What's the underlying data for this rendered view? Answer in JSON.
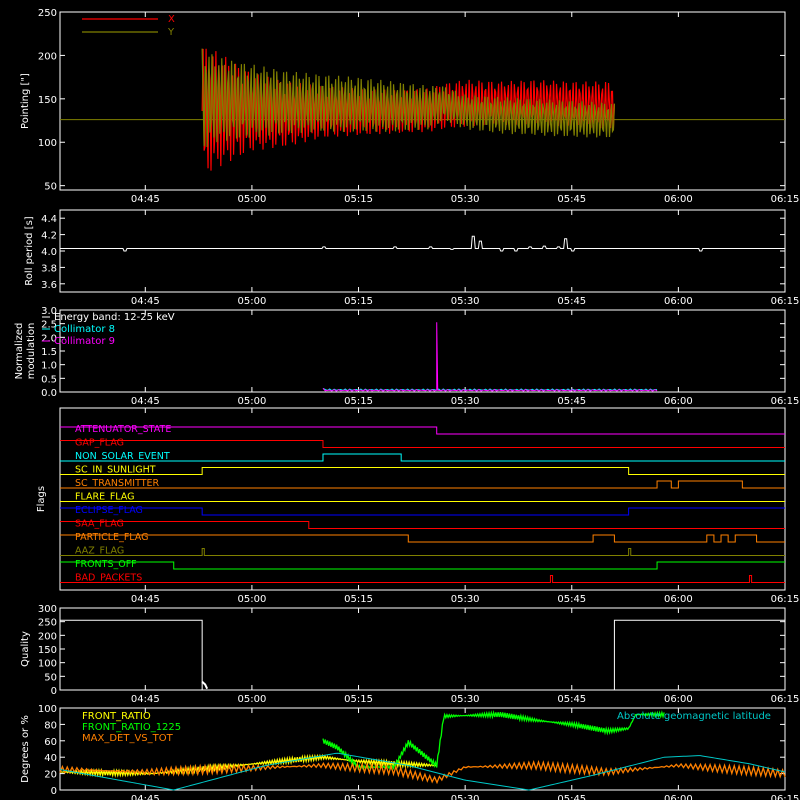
{
  "chart_data": [
    {
      "type": "line",
      "ylabel": "Pointing [\"]",
      "ylim": [
        45,
        250
      ],
      "yticks": [
        50,
        100,
        150,
        200,
        250
      ],
      "xlim": [
        "04:33",
        "06:15"
      ],
      "xticks": [
        "04:45",
        "05:00",
        "05:15",
        "05:30",
        "05:45",
        "06:00",
        "06:15"
      ],
      "legend_position": "top-left",
      "series": [
        {
          "name": "X",
          "color": "#ff0000",
          "segments": [
            {
              "t": [
                "04:53",
                "04:55",
                "05:00",
                "05:05",
                "05:10",
                "05:15",
                "05:20",
                "05:25",
                "05:27",
                "05:30",
                "05:35",
                "05:40",
                "05:45",
                "05:51"
              ],
              "upper": [
                212,
                205,
                180,
                170,
                165,
                162,
                160,
                162,
                168,
                172,
                170,
                172,
                170,
                170
              ],
              "lower": [
                60,
                70,
                90,
                95,
                105,
                108,
                110,
                112,
                115,
                118,
                120,
                120,
                118,
                115
              ]
            }
          ]
        },
        {
          "name": "Y",
          "color": "#808000",
          "baseline": 126,
          "segments": [
            {
              "t": [
                "04:53",
                "04:55",
                "05:00",
                "05:05",
                "05:10",
                "05:15",
                "05:20",
                "05:25",
                "05:27",
                "05:30",
                "05:35",
                "05:40",
                "05:45",
                "05:51"
              ],
              "upper": [
                210,
                198,
                190,
                182,
                178,
                175,
                170,
                165,
                165,
                155,
                152,
                150,
                148,
                145
              ],
              "lower": [
                90,
                100,
                105,
                110,
                112,
                112,
                112,
                115,
                125,
                115,
                110,
                108,
                106,
                105
              ]
            }
          ]
        }
      ]
    },
    {
      "type": "line",
      "ylabel": "Roll period [s]",
      "ylim": [
        3.5,
        4.5
      ],
      "yticks": [
        "3.6",
        "3.8",
        "4.0",
        "4.2",
        "4.4"
      ],
      "series": [
        {
          "color": "#ffffff",
          "baseline": 4.03,
          "spikes": [
            [
              "04:42",
              4.0
            ],
            [
              "05:10",
              4.05
            ],
            [
              "05:20",
              4.05
            ],
            [
              "05:25",
              4.05
            ],
            [
              "05:28",
              4.02
            ],
            [
              "05:31",
              4.18
            ],
            [
              "05:32",
              4.12
            ],
            [
              "05:35",
              4.0
            ],
            [
              "05:37",
              4.0
            ],
            [
              "05:39",
              4.05
            ],
            [
              "05:41",
              4.06
            ],
            [
              "05:43",
              4.05
            ],
            [
              "05:44",
              4.15
            ],
            [
              "05:45",
              4.0
            ],
            [
              "06:03",
              4.0
            ]
          ]
        }
      ]
    },
    {
      "type": "line",
      "ylabel": "Normalized modulation",
      "ylim": [
        0,
        3.0
      ],
      "yticks": [
        "0.0",
        "0.5",
        "1.0",
        "1.5",
        "2.0",
        "2.5",
        "3.0"
      ],
      "legend": [
        "Energy band: 12-25 keV",
        "Collimator 8",
        "Collimator 9"
      ],
      "legend_colors": [
        "#ffffff",
        "#00ffff",
        "#ff00ff"
      ],
      "series": [
        {
          "name": "Collimator 8",
          "color": "#00ffff",
          "t_start": "05:10",
          "t_end": "05:57",
          "level": 0.08
        },
        {
          "name": "Collimator 9",
          "color": "#ff00ff",
          "t_start": "05:10",
          "t_end": "05:57",
          "level": 0.06,
          "spike": [
            "05:26",
            2.55
          ]
        }
      ]
    },
    {
      "type": "step",
      "ylabel": "Flags",
      "flags": [
        {
          "label": "ATTENUATOR_STATE",
          "color": "#ff00ff",
          "steps": [
            [
              "04:33",
              1
            ],
            [
              "05:26",
              0
            ]
          ]
        },
        {
          "label": "GAP_FLAG",
          "color": "#ff0000",
          "steps": [
            [
              "04:33",
              1
            ],
            [
              "05:10",
              0
            ]
          ]
        },
        {
          "label": "NON_SOLAR_EVENT",
          "color": "#00ffff",
          "steps": [
            [
              "04:33",
              0
            ],
            [
              "05:10",
              1
            ],
            [
              "05:21",
              0
            ]
          ]
        },
        {
          "label": "SC_IN_SUNLIGHT",
          "color": "#ffff00",
          "steps": [
            [
              "04:33",
              0
            ],
            [
              "04:53",
              1
            ],
            [
              "05:53",
              0
            ]
          ]
        },
        {
          "label": "SC_TRANSMITTER",
          "color": "#ff8000",
          "steps": [
            [
              "04:33",
              0
            ],
            [
              "04:45",
              0
            ],
            [
              "05:57",
              1
            ],
            [
              "05:59",
              0
            ],
            [
              "06:00",
              1
            ],
            [
              "06:09",
              0
            ]
          ]
        },
        {
          "label": "FLARE_FLAG",
          "color": "#ffff00",
          "steps": [
            [
              "04:33",
              0
            ]
          ]
        },
        {
          "label": "ECLIPSE_FLAG",
          "color": "#0000ff",
          "steps": [
            [
              "04:33",
              1
            ],
            [
              "04:53",
              0
            ],
            [
              "05:53",
              1
            ]
          ]
        },
        {
          "label": "SAA_FLAG",
          "color": "#ff0000",
          "steps": [
            [
              "04:33",
              1
            ],
            [
              "05:08",
              0
            ]
          ]
        },
        {
          "label": "PARTICLE_FLAG",
          "color": "#ff8000",
          "steps": [
            [
              "04:33",
              1
            ],
            [
              "05:22",
              0
            ],
            [
              "05:48",
              1
            ],
            [
              "05:51",
              0
            ],
            [
              "06:04",
              1
            ],
            [
              "06:05",
              0
            ],
            [
              "06:06",
              1
            ],
            [
              "06:07",
              0
            ],
            [
              "06:08",
              1
            ],
            [
              "06:11",
              0
            ]
          ]
        },
        {
          "label": "AAZ_FLAG",
          "color": "#808000",
          "steps": [
            [
              "04:33",
              0
            ],
            [
              "04:53",
              1
            ],
            [
              "04:53.3",
              0
            ],
            [
              "05:53",
              1
            ],
            [
              "05:53.3",
              0
            ]
          ]
        },
        {
          "label": "FRONTS_OFF",
          "color": "#00ff00",
          "steps": [
            [
              "04:33",
              1
            ],
            [
              "04:49",
              0
            ],
            [
              "05:57",
              1
            ]
          ]
        },
        {
          "label": "BAD_PACKETS",
          "color": "#ff0000",
          "steps": [
            [
              "04:33",
              0
            ],
            [
              "05:42",
              1
            ],
            [
              "05:42.3",
              0
            ],
            [
              "06:10",
              1
            ],
            [
              "06:10.3",
              0
            ]
          ]
        }
      ]
    },
    {
      "type": "line",
      "ylabel": "Quality",
      "ylim": [
        0,
        300
      ],
      "yticks": [
        0,
        50,
        100,
        150,
        200,
        250,
        300
      ],
      "series": [
        {
          "color": "#ffffff",
          "steps": [
            [
              "04:33",
              255
            ],
            [
              "04:53",
              0
            ],
            [
              "05:51",
              255
            ]
          ]
        }
      ]
    },
    {
      "type": "line",
      "ylabel": "Degrees or %",
      "ylim": [
        0,
        100
      ],
      "yticks": [
        0,
        20,
        40,
        60,
        80,
        100
      ],
      "annotation": "Absolute geomagnetic latitude",
      "legend": [
        "FRONT_RATIO",
        "FRONT_RATIO_1225",
        "MAX_DET_VS_TOT"
      ],
      "legend_colors": [
        "#ffff00",
        "#00ff00",
        "#ff8000"
      ],
      "series": [
        {
          "name": "FRONT_RATIO",
          "color": "#ffff00",
          "points": [
            [
              "04:33",
              22
            ],
            [
              "04:46",
              20
            ],
            [
              "05:10",
              40
            ],
            [
              "05:15",
              35
            ],
            [
              "05:20",
              32
            ],
            [
              "05:26",
              30
            ]
          ]
        },
        {
          "name": "FRONT_RATIO_1225",
          "color": "#00ff00",
          "points": [
            [
              "05:10",
              60
            ],
            [
              "05:12",
              52
            ],
            [
              "05:15",
              28
            ],
            [
              "05:20",
              28
            ],
            [
              "05:22",
              58
            ],
            [
              "05:26",
              30
            ],
            [
              "05:27",
              90
            ],
            [
              "05:35",
              92
            ],
            [
              "05:40",
              85
            ],
            [
              "05:45",
              80
            ],
            [
              "05:50",
              72
            ],
            [
              "05:53",
              75
            ],
            [
              "05:54",
              92
            ],
            [
              "05:58",
              92
            ]
          ]
        },
        {
          "name": "MAX_DET_VS_TOT",
          "color": "#ff8000",
          "points": [
            [
              "04:33",
              25
            ],
            [
              "04:45",
              22
            ],
            [
              "05:10",
              30
            ],
            [
              "05:20",
              24
            ],
            [
              "05:26",
              12
            ],
            [
              "05:30",
              28
            ],
            [
              "05:40",
              30
            ],
            [
              "05:50",
              22
            ],
            [
              "06:00",
              30
            ],
            [
              "06:15",
              20
            ]
          ]
        },
        {
          "name": "Absolute geomagnetic latitude",
          "color": "#00c8c8",
          "points": [
            [
              "04:33",
              25
            ],
            [
              "04:49",
              0
            ],
            [
              "05:02",
              30
            ],
            [
              "05:12",
              45
            ],
            [
              "05:22",
              30
            ],
            [
              "05:30",
              12
            ],
            [
              "05:39",
              0
            ],
            [
              "05:48",
              18
            ],
            [
              "05:58",
              40
            ],
            [
              "06:03",
              42
            ],
            [
              "06:10",
              32
            ],
            [
              "06:15",
              22
            ]
          ]
        }
      ]
    }
  ]
}
